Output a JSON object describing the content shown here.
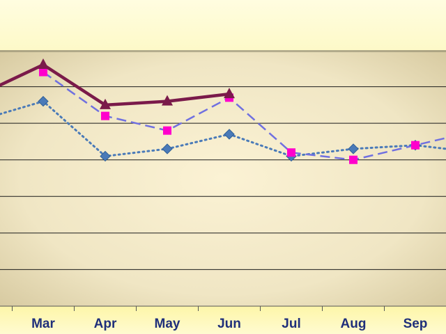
{
  "chart_data": {
    "type": "line",
    "title": "",
    "xlabel": "",
    "ylabel": "",
    "categories": [
      "Mar",
      "Apr",
      "May",
      "Jun",
      "Jul",
      "Aug",
      "Sep"
    ],
    "ylim": [
      0,
      7
    ],
    "grid": true,
    "legend": "none",
    "series": [
      {
        "values": [
          5.6,
          4.1,
          4.3,
          4.7,
          4.1,
          4.3,
          4.4
        ],
        "before": 5.1,
        "after": 4.2,
        "color": "#4a7ab8",
        "style": "dotted",
        "marker": "diamond"
      },
      {
        "values": [
          6.4,
          5.2,
          4.8,
          5.7,
          4.2,
          4.0,
          4.4
        ],
        "after": 4.8,
        "color": "#7070e0",
        "marker_color": "#ff00cc",
        "style": "dashed",
        "marker": "square"
      },
      {
        "values": [
          6.6,
          5.5,
          5.6,
          5.8,
          null,
          null,
          null
        ],
        "before": 5.8,
        "color": "#7a1a4a",
        "style": "solid",
        "marker": "triangle"
      }
    ]
  }
}
